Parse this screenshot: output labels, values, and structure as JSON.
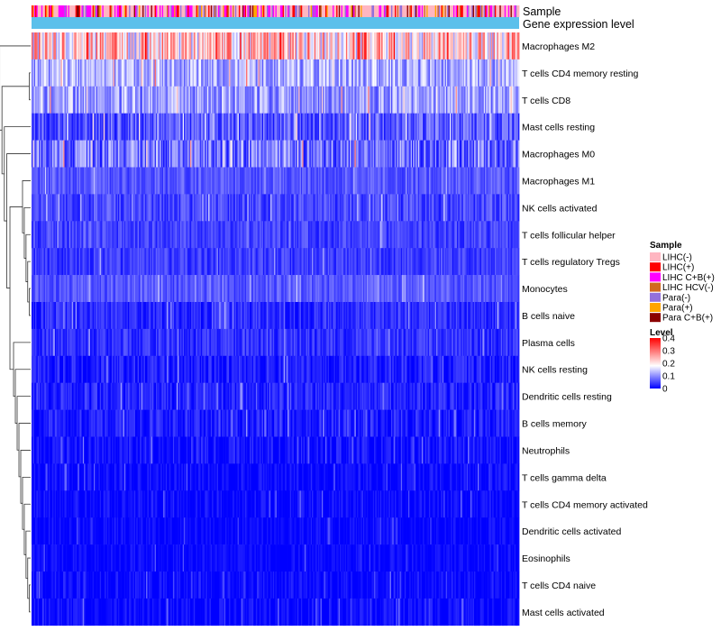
{
  "chart_data": {
    "type": "heatmap",
    "title": "",
    "column_annotations": [
      {
        "label": "Sample",
        "type": "categorical"
      },
      {
        "label": "Gene expression level",
        "type": "constant",
        "color": "#5bc0eb"
      }
    ],
    "rows": [
      {
        "label": "Macrophages M2",
        "mean": 0.22,
        "spread": 0.12
      },
      {
        "label": "T cells CD4 memory resting",
        "mean": 0.12,
        "spread": 0.06
      },
      {
        "label": "T cells CD8",
        "mean": 0.11,
        "spread": 0.06
      },
      {
        "label": "Mast cells resting",
        "mean": 0.06,
        "spread": 0.05
      },
      {
        "label": "Macrophages M0",
        "mean": 0.08,
        "spread": 0.07
      },
      {
        "label": "Macrophages M1",
        "mean": 0.06,
        "spread": 0.03
      },
      {
        "label": "NK cells activated",
        "mean": 0.05,
        "spread": 0.035
      },
      {
        "label": "T cells follicular helper",
        "mean": 0.045,
        "spread": 0.03
      },
      {
        "label": "T cells regulatory  Tregs",
        "mean": 0.04,
        "spread": 0.03
      },
      {
        "label": "Monocytes",
        "mean": 0.06,
        "spread": 0.03
      },
      {
        "label": "B cells naive",
        "mean": 0.03,
        "spread": 0.03
      },
      {
        "label": "Plasma cells",
        "mean": 0.035,
        "spread": 0.03
      },
      {
        "label": "NK cells resting",
        "mean": 0.02,
        "spread": 0.03
      },
      {
        "label": "Dendritic cells resting",
        "mean": 0.025,
        "spread": 0.03
      },
      {
        "label": "B cells memory",
        "mean": 0.02,
        "spread": 0.03
      },
      {
        "label": "Neutrophils",
        "mean": 0.012,
        "spread": 0.03
      },
      {
        "label": "T cells gamma delta",
        "mean": 0.006,
        "spread": 0.025
      },
      {
        "label": "T cells CD4 memory activated",
        "mean": 0.006,
        "spread": 0.025
      },
      {
        "label": "Dendritic cells activated",
        "mean": 0.005,
        "spread": 0.02
      },
      {
        "label": "Eosinophils",
        "mean": 0.004,
        "spread": 0.02
      },
      {
        "label": "T cells CD4 naive",
        "mean": 0.004,
        "spread": 0.025
      },
      {
        "label": "Mast cells activated",
        "mean": 0.006,
        "spread": 0.025
      }
    ],
    "n_columns": 400,
    "legend": {
      "sample": {
        "title": "Sample",
        "entries": [
          {
            "label": "LIHC(-)",
            "color": "#ffb6c1"
          },
          {
            "label": "LIHC(+)",
            "color": "#ff0000"
          },
          {
            "label": "LIHC C+B(+)",
            "color": "#ff00ff"
          },
          {
            "label": "LIHC HCV(-)",
            "color": "#d2691e"
          },
          {
            "label": "Para(-)",
            "color": "#9370db"
          },
          {
            "label": "Para(+)",
            "color": "#ffa500"
          },
          {
            "label": "Para C+B(+)",
            "color": "#8b0000"
          }
        ],
        "column_weights": [
          0.45,
          0.1,
          0.17,
          0.05,
          0.12,
          0.06,
          0.05
        ]
      },
      "level": {
        "title": "Level",
        "ticks": [
          "0.4",
          "0.3",
          "0.2",
          "0.1",
          "0"
        ],
        "range": [
          0,
          0.4
        ],
        "colors": {
          "low": "#0000ff",
          "mid": "#ffffff",
          "high": "#ff0000",
          "mid_value": 0.18
        }
      }
    }
  }
}
